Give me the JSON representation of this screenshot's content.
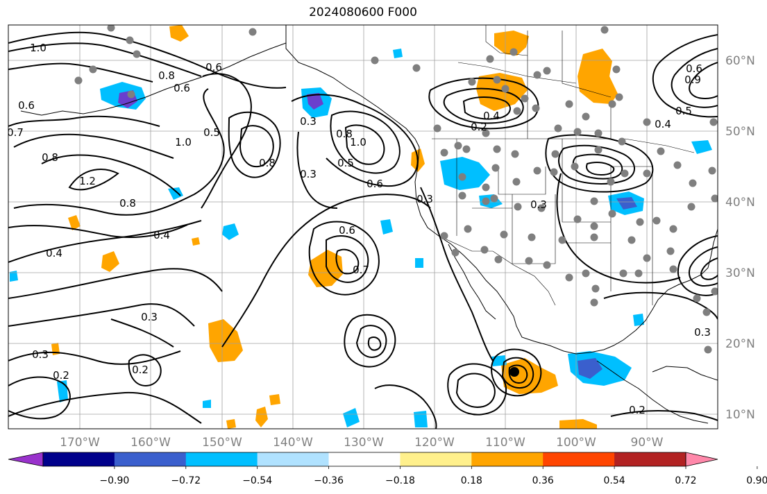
{
  "title": "2024080600 F000",
  "lon_labels": [
    "170°W",
    "160°W",
    "150°W",
    "140°W",
    "130°W",
    "120°W",
    "110°W",
    "100°W",
    "90°W"
  ],
  "lat_labels": [
    "60°N",
    "50°N",
    "40°N",
    "30°N",
    "20°N",
    "10°N"
  ],
  "colorbar": {
    "tick_labels": [
      "−0.90",
      "−0.72",
      "−0.54",
      "−0.36",
      "−0.18",
      "0.18",
      "0.36",
      "0.54",
      "0.72",
      "0.90"
    ],
    "colors": [
      "#9932cc",
      "#00008b",
      "#3a5fcd",
      "#00bfff",
      "#b0e2ff",
      "#ffffff",
      "#fff08c",
      "#ffa500",
      "#ff4500",
      "#b22222",
      "#ff88aa"
    ]
  },
  "contour_labels": [
    "1.0",
    "0.6",
    "0.7",
    "0.8",
    "1.2",
    "0.8",
    "0.4",
    "0.4",
    "0.3",
    "0.3",
    "0.2",
    "0.2",
    "0.6",
    "1.0",
    "0.5",
    "0.8",
    "0.3",
    "1.0",
    "0.8",
    "0.5",
    "0.6",
    "0.3",
    "0.6",
    "0.7",
    "0.3",
    "0.4",
    "0.2",
    "0.3",
    "0.2",
    "0.4",
    "0.5",
    "0.6",
    "0.9",
    "0.8",
    "0.6",
    "0.3"
  ],
  "fill_colors": {
    "orange": "#ffa500",
    "sky": "#00bfff",
    "blue": "#3a5fcd",
    "purple": "#6a3fcd"
  }
}
